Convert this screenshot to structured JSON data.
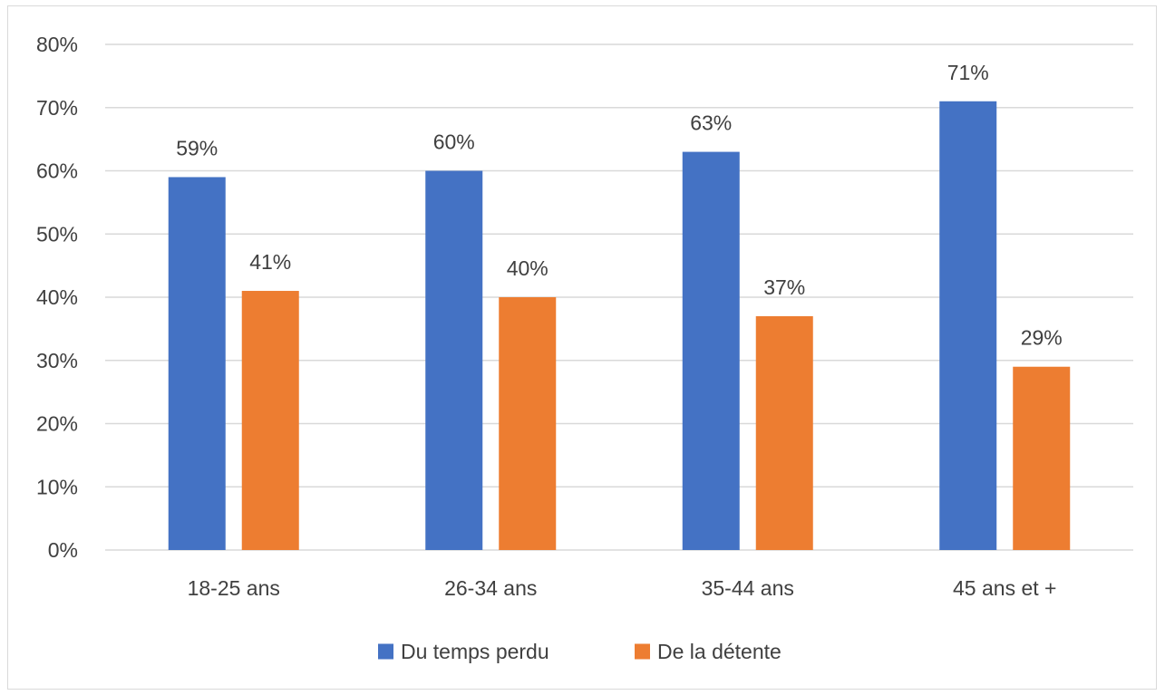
{
  "chart_data": {
    "type": "bar",
    "categories": [
      "18-25 ans",
      "26-34 ans",
      "35-44 ans",
      "45 ans et +"
    ],
    "series": [
      {
        "name": "Du temps perdu",
        "values": [
          59,
          60,
          63,
          71
        ],
        "labels": [
          "59%",
          "60%",
          "63%",
          "71%"
        ],
        "color": "#4472C4"
      },
      {
        "name": "De la détente",
        "values": [
          41,
          40,
          37,
          29
        ],
        "labels": [
          "41%",
          "40%",
          "37%",
          "29%"
        ],
        "color": "#ED7D31"
      }
    ],
    "yticks": [
      {
        "value": 0,
        "label": "0%"
      },
      {
        "value": 10,
        "label": "10%"
      },
      {
        "value": 20,
        "label": "20%"
      },
      {
        "value": 30,
        "label": "30%"
      },
      {
        "value": 40,
        "label": "40%"
      },
      {
        "value": 50,
        "label": "50%"
      },
      {
        "value": 60,
        "label": "60%"
      },
      {
        "value": 70,
        "label": "70%"
      },
      {
        "value": 80,
        "label": "80%"
      }
    ],
    "ylim": [
      0,
      80
    ],
    "grid": true,
    "legend_position": "bottom",
    "gridline_color": "#d9d9d9"
  }
}
